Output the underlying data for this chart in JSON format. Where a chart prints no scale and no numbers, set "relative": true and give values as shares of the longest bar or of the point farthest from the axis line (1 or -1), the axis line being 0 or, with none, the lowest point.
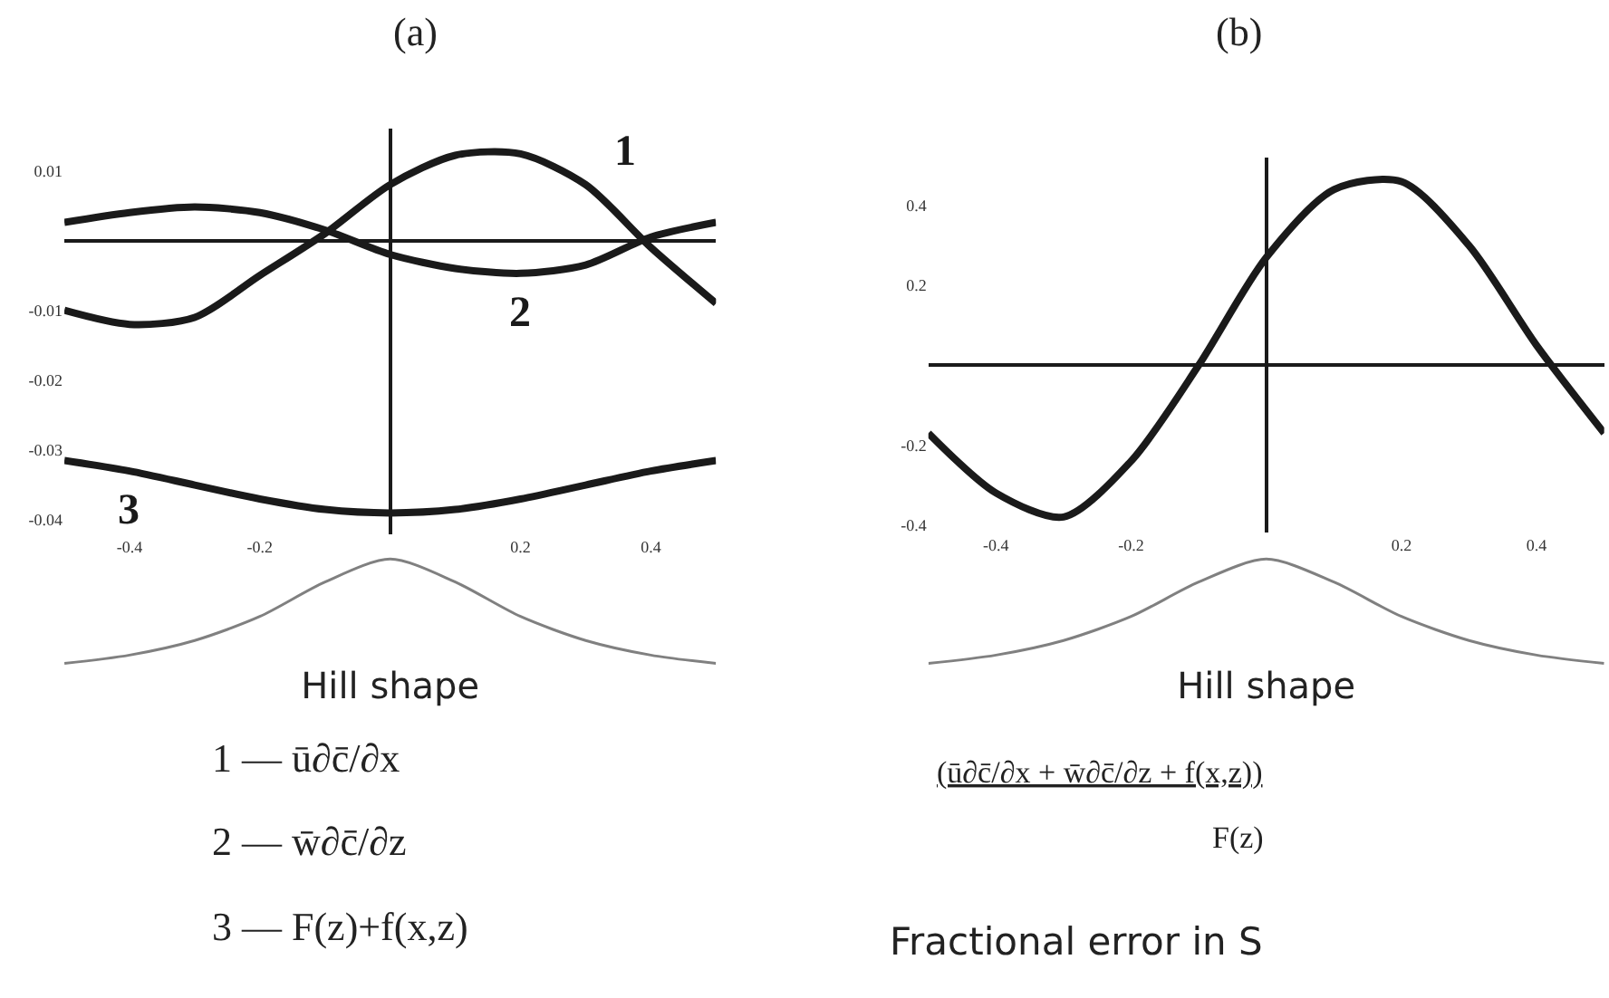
{
  "chart_data": [
    {
      "type": "line",
      "title": "(a)",
      "x": [
        -0.5,
        -0.4,
        -0.3,
        -0.2,
        -0.1,
        0,
        0.1,
        0.2,
        0.3,
        0.4,
        0.5
      ],
      "series": [
        {
          "name": "1",
          "color": "#1a1a1a",
          "values": [
            -0.01,
            -0.012,
            -0.011,
            -0.005,
            0.001,
            0.008,
            0.0122,
            0.0124,
            0.008,
            -0.001,
            -0.009
          ]
        },
        {
          "name": "2",
          "color": "#1a1a1a",
          "values": [
            0.0026,
            0.004,
            0.0048,
            0.004,
            0.0015,
            -0.002,
            -0.004,
            -0.0047,
            -0.0035,
            0.0005,
            0.0026
          ]
        },
        {
          "name": "3",
          "color": "#1a1a1a",
          "values": [
            -0.0315,
            -0.033,
            -0.035,
            -0.037,
            -0.0385,
            -0.039,
            -0.0385,
            -0.037,
            -0.035,
            -0.033,
            -0.0315
          ]
        }
      ],
      "xlim": [
        -0.5,
        0.5
      ],
      "xticks": [
        -0.4,
        -0.2,
        0.2,
        0.4
      ],
      "ylim": [
        -0.042,
        0.016
      ],
      "yticks": [
        0.01,
        -0.01,
        -0.02,
        -0.03,
        -0.04
      ],
      "marker": "none",
      "line_style": "solid",
      "annotations": [
        "1 — ū∂c̄/∂x",
        "2 — w̄∂c̄/∂z",
        "3 — F(z)+f(x,z)"
      ]
    },
    {
      "type": "line",
      "title": "(b)",
      "x": [
        -0.5,
        -0.4,
        -0.3,
        -0.2,
        -0.1,
        0,
        0.1,
        0.2,
        0.3,
        0.4,
        0.5
      ],
      "series": [
        {
          "color": "#1a1a1a",
          "values": [
            -0.17,
            -0.32,
            -0.38,
            -0.24,
            0.0,
            0.27,
            0.44,
            0.46,
            0.3,
            0.05,
            -0.17
          ]
        }
      ],
      "xlim": [
        -0.5,
        0.5
      ],
      "xticks": [
        -0.4,
        -0.2,
        0.2,
        0.4
      ],
      "ylim": [
        -0.42,
        0.52
      ],
      "yticks": [
        0.4,
        0.2,
        -0.2,
        -0.4
      ],
      "marker": "none",
      "line_style": "solid",
      "annotations": [
        "(ū∂c̄/∂x + w̄∂c̄/∂z + f(x,z))",
        "F(z)",
        "Fractional error in S"
      ]
    },
    {
      "type": "line",
      "relative": true,
      "xlabel": "Hill shape",
      "categories": [
        null,
        null,
        null,
        null,
        null,
        null,
        null,
        null,
        null,
        null,
        null
      ],
      "series": [
        {
          "color": "#808080",
          "values": [
            0,
            0.08,
            0.22,
            0.45,
            0.78,
            1,
            0.78,
            0.45,
            0.22,
            0.08,
            0
          ]
        }
      ]
    },
    {
      "type": "line",
      "relative": true,
      "xlabel": "Hill shape",
      "categories": [
        null,
        null,
        null,
        null,
        null,
        null,
        null,
        null,
        null,
        null,
        null
      ],
      "series": [
        {
          "color": "#808080",
          "values": [
            0,
            0.08,
            0.22,
            0.45,
            0.78,
            1,
            0.78,
            0.45,
            0.22,
            0.08,
            0
          ]
        }
      ]
    }
  ]
}
